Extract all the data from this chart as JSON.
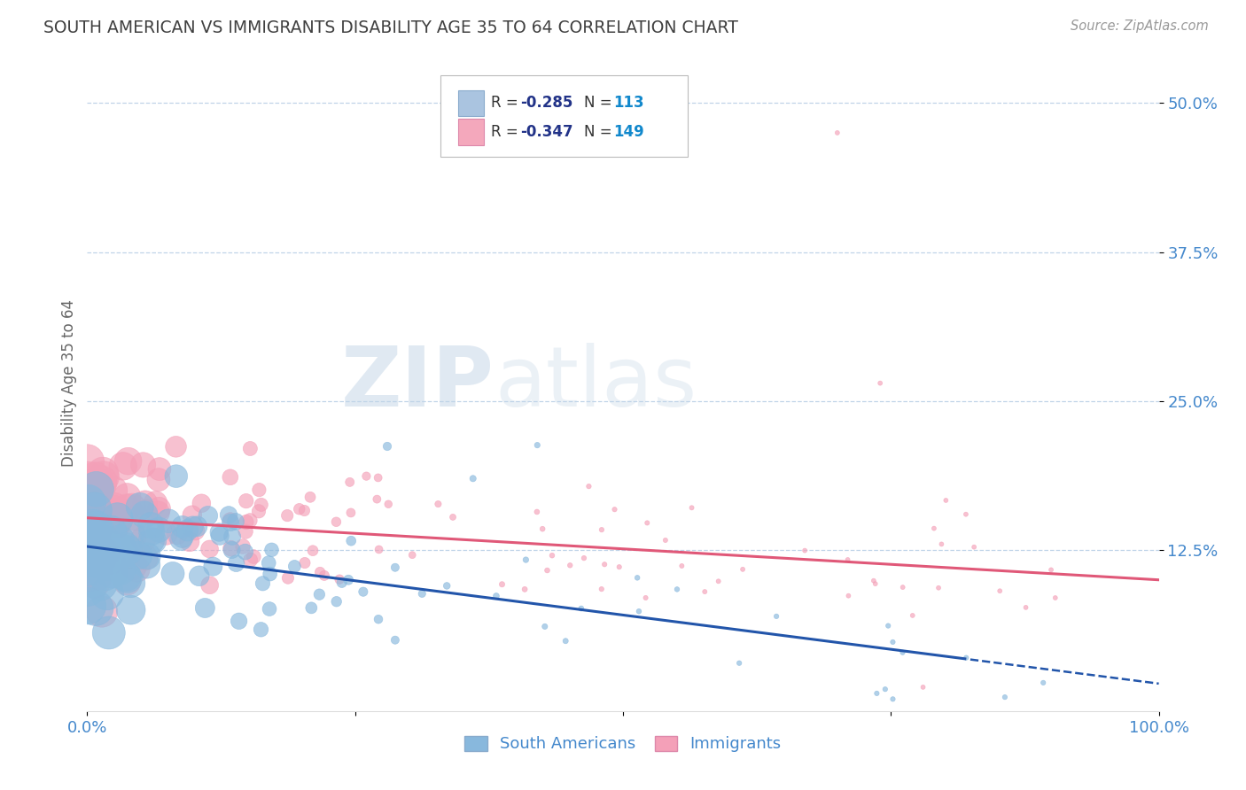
{
  "title": "SOUTH AMERICAN VS IMMIGRANTS DISABILITY AGE 35 TO 64 CORRELATION CHART",
  "source": "Source: ZipAtlas.com",
  "ylabel": "Disability Age 35 to 64",
  "xlim": [
    0.0,
    1.0
  ],
  "ylim": [
    -0.01,
    0.54
  ],
  "ytick_positions": [
    0.125,
    0.25,
    0.375,
    0.5
  ],
  "ytick_labels": [
    "12.5%",
    "25.0%",
    "37.5%",
    "50.0%"
  ],
  "xtick_positions": [
    0.0,
    0.25,
    0.5,
    0.75,
    1.0
  ],
  "xtick_labels": [
    "0.0%",
    "",
    "",
    "",
    "100.0%"
  ],
  "south_american_R": "-0.285",
  "south_american_N": "113",
  "immigrants_R": "-0.347",
  "immigrants_N": "149",
  "sa_color": "#aac4e0",
  "imm_color": "#f4a8bc",
  "sa_line_color": "#2255aa",
  "imm_line_color": "#e05878",
  "sa_scatter_color": "#88b8dd",
  "imm_scatter_color": "#f4a0b8",
  "watermark_zip": "ZIP",
  "watermark_atlas": "atlas",
  "background_color": "#ffffff",
  "grid_color": "#c0d4e8",
  "title_color": "#404040",
  "legend_r_color": "#223388",
  "legend_n_color": "#1188cc",
  "axis_label_color": "#4488cc",
  "sa_trend_intercept": 0.128,
  "sa_trend_slope": -0.115,
  "imm_trend_intercept": 0.152,
  "imm_trend_slope": -0.052,
  "south_americans_label": "South Americans",
  "immigrants_label": "Immigrants"
}
